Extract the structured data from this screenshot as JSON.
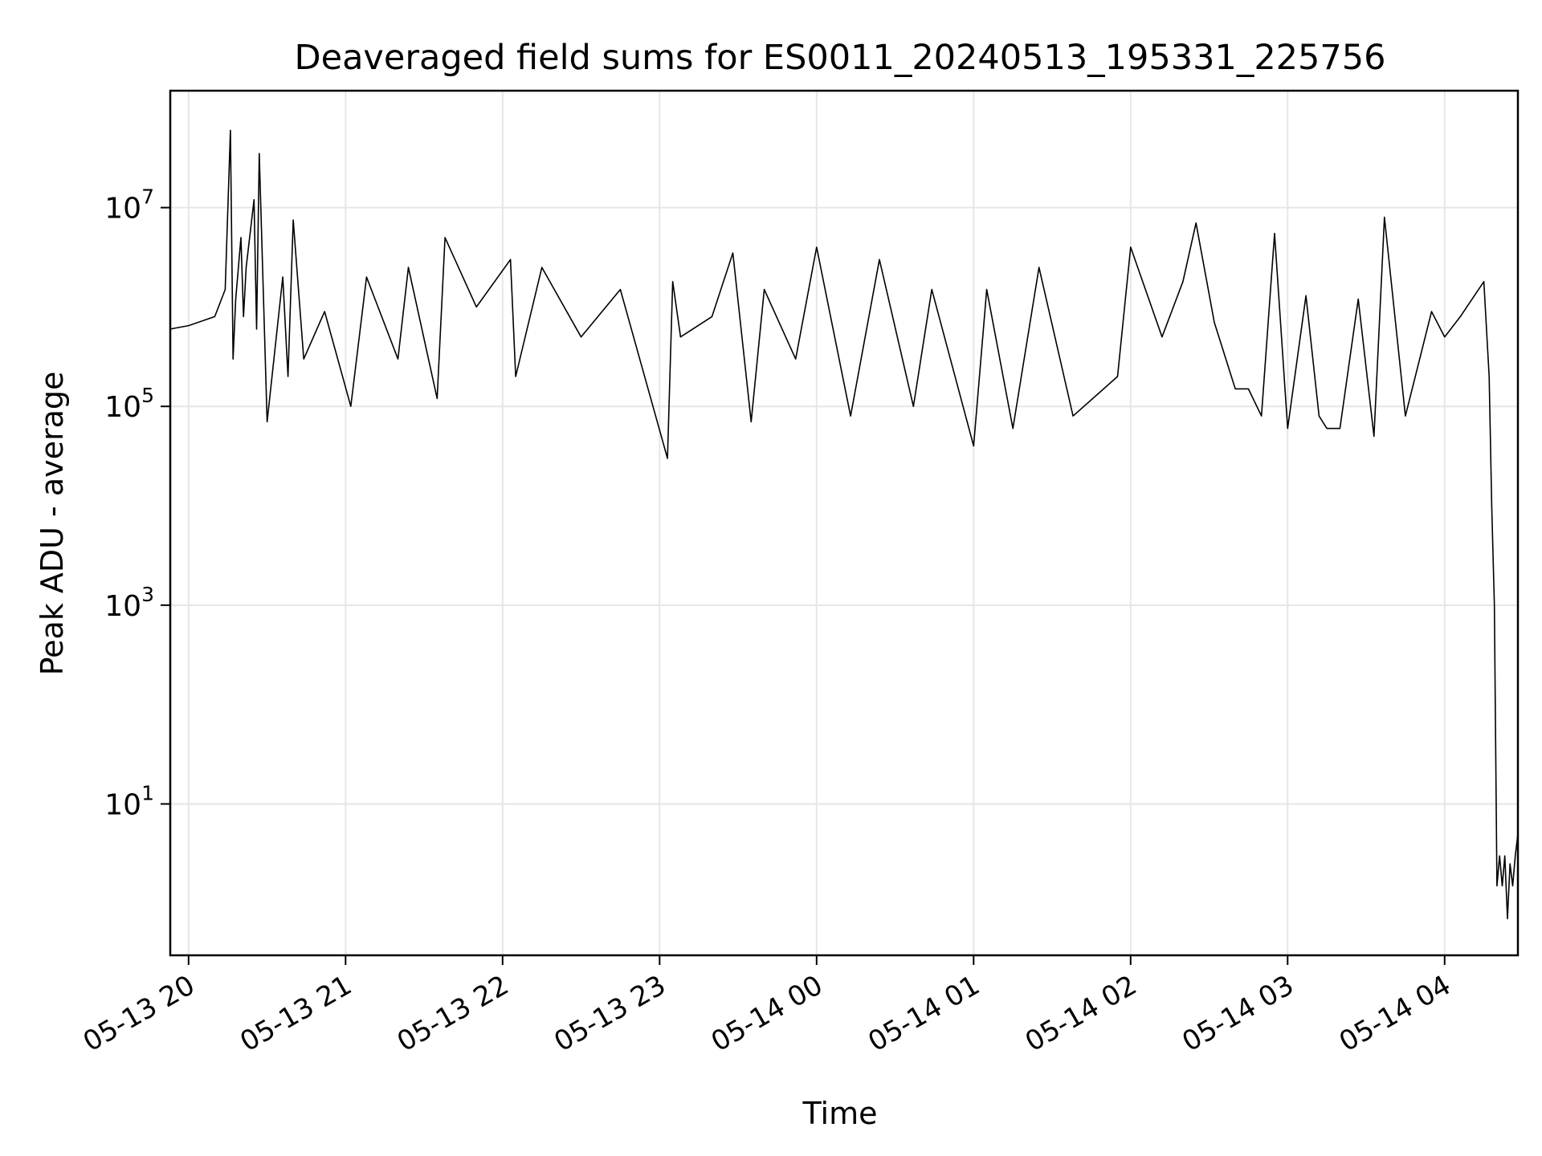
{
  "chart_data": {
    "type": "line",
    "title": "Deaveraged field sums for ES0011_20240513_195331_225756",
    "xlabel": "Time",
    "ylabel": "Peak ADU - average",
    "y_scale": "log",
    "xlim": [
      "2024-05-13 19:53",
      "2024-05-14 04:28"
    ],
    "ylim": [
      0.3,
      150000000
    ],
    "x_tick_labels": [
      "05-13 20",
      "05-13 21",
      "05-13 22",
      "05-13 23",
      "05-14 00",
      "05-14 01",
      "05-14 02",
      "05-14 03",
      "05-14 04"
    ],
    "x_ticks": [
      "2024-05-13 20:00",
      "2024-05-13 21:00",
      "2024-05-13 22:00",
      "2024-05-13 23:00",
      "2024-05-14 00:00",
      "2024-05-14 01:00",
      "2024-05-14 02:00",
      "2024-05-14 03:00",
      "2024-05-14 04:00"
    ],
    "y_ticks": [
      {
        "value": 10,
        "base": "10",
        "exp": "1"
      },
      {
        "value": 1000,
        "base": "10",
        "exp": "3"
      },
      {
        "value": 100000,
        "base": "10",
        "exp": "5"
      },
      {
        "value": 10000000,
        "base": "10",
        "exp": "7"
      }
    ],
    "grid": true,
    "line_color": "#000000",
    "series": [
      {
        "x": [
          "2024-05-13 19:53",
          "2024-05-13 20:00",
          "2024-05-13 20:10",
          "2024-05-13 20:14",
          "2024-05-13 20:16",
          "2024-05-13 20:17",
          "2024-05-13 20:18",
          "2024-05-13 20:20",
          "2024-05-13 20:21",
          "2024-05-13 20:22",
          "2024-05-13 20:25",
          "2024-05-13 20:26",
          "2024-05-13 20:27",
          "2024-05-13 20:30",
          "2024-05-13 20:36",
          "2024-05-13 20:38",
          "2024-05-13 20:40",
          "2024-05-13 20:44",
          "2024-05-13 20:52",
          "2024-05-13 21:02",
          "2024-05-13 21:08",
          "2024-05-13 21:20",
          "2024-05-13 21:24",
          "2024-05-13 21:35",
          "2024-05-13 21:38",
          "2024-05-13 21:50",
          "2024-05-13 22:03",
          "2024-05-13 22:05",
          "2024-05-13 22:15",
          "2024-05-13 22:30",
          "2024-05-13 22:45",
          "2024-05-13 23:03",
          "2024-05-13 23:05",
          "2024-05-13 23:08",
          "2024-05-13 23:20",
          "2024-05-13 23:28",
          "2024-05-13 23:35",
          "2024-05-13 23:40",
          "2024-05-13 23:52",
          "2024-05-14 00:00",
          "2024-05-14 00:13",
          "2024-05-14 00:24",
          "2024-05-14 00:37",
          "2024-05-14 00:44",
          "2024-05-14 01:00",
          "2024-05-14 01:05",
          "2024-05-14 01:15",
          "2024-05-14 01:25",
          "2024-05-14 01:38",
          "2024-05-14 01:55",
          "2024-05-14 02:00",
          "2024-05-14 02:12",
          "2024-05-14 02:20",
          "2024-05-14 02:25",
          "2024-05-14 02:32",
          "2024-05-14 02:40",
          "2024-05-14 02:45",
          "2024-05-14 02:50",
          "2024-05-14 02:55",
          "2024-05-14 03:00",
          "2024-05-14 03:07",
          "2024-05-14 03:12",
          "2024-05-14 03:15",
          "2024-05-14 03:20",
          "2024-05-14 03:27",
          "2024-05-14 03:33",
          "2024-05-14 03:37",
          "2024-05-14 03:45",
          "2024-05-14 03:55",
          "2024-05-14 04:00",
          "2024-05-14 04:06",
          "2024-05-14 04:15",
          "2024-05-14 04:17",
          "2024-05-14 04:18",
          "2024-05-14 04:19",
          "2024-05-14 04:20",
          "2024-05-14 04:21",
          "2024-05-14 04:22",
          "2024-05-14 04:23",
          "2024-05-14 04:24",
          "2024-05-14 04:25",
          "2024-05-14 04:26",
          "2024-05-14 04:27",
          "2024-05-14 04:28"
        ],
        "y": [
          600000,
          650000,
          800000,
          1500000,
          60000000,
          300000,
          1200000,
          5000000,
          800000,
          2500000,
          12000000,
          600000,
          35000000,
          70000,
          2000000,
          200000,
          7500000,
          300000,
          900000,
          100000,
          2000000,
          300000,
          2500000,
          120000,
          5000000,
          1000000,
          3000000,
          200000,
          2500000,
          500000,
          1500000,
          30000,
          1800000,
          500000,
          800000,
          3500000,
          70000,
          1500000,
          300000,
          4000000,
          80000,
          3000000,
          100000,
          1500000,
          40000,
          1500000,
          60000,
          2500000,
          80000,
          200000,
          4000000,
          500000,
          1800000,
          7000000,
          700000,
          150000,
          150000,
          80000,
          5500000,
          60000,
          1300000,
          80000,
          60000,
          60000,
          1200000,
          50000,
          8000000,
          80000,
          900000,
          500000,
          800000,
          1800000,
          200000,
          10000,
          1000,
          1.5,
          3,
          1.5,
          3,
          0.7,
          2.5,
          1.5,
          3,
          5
        ]
      }
    ]
  }
}
